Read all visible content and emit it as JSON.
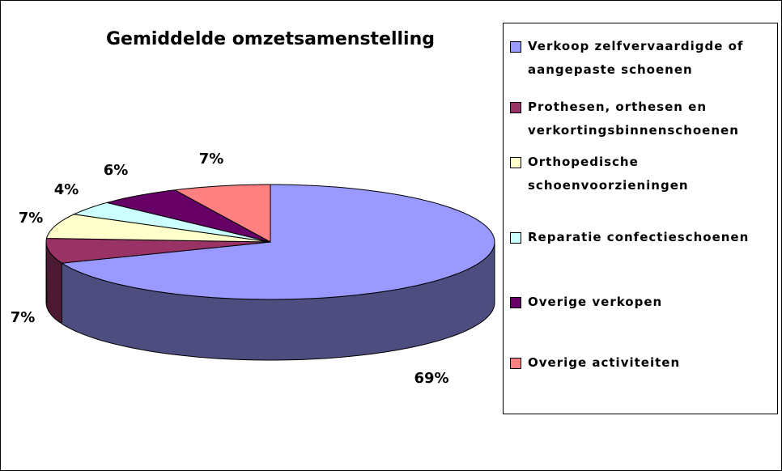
{
  "chart_data": {
    "type": "pie",
    "title": "Gemiddelde omzetsamenstelling",
    "categories": [
      "Verkoop zelfvervaardigde of aangepaste schoenen",
      "Prothesen, orthesen en verkortingsbinnenschoenen",
      "Orthopedische schoenvoorzieningen",
      "Reparatie confectieschoenen",
      "Overige verkopen",
      "Overige activiteiten"
    ],
    "values": [
      69,
      7,
      7,
      4,
      6,
      7
    ],
    "value_labels": [
      "69%",
      "7%",
      "7%",
      "4%",
      "6%",
      "7%"
    ],
    "colors": [
      "#9999ff",
      "#993366",
      "#ffffcc",
      "#ccffff",
      "#660066",
      "#ff8080"
    ],
    "legend": "right"
  }
}
